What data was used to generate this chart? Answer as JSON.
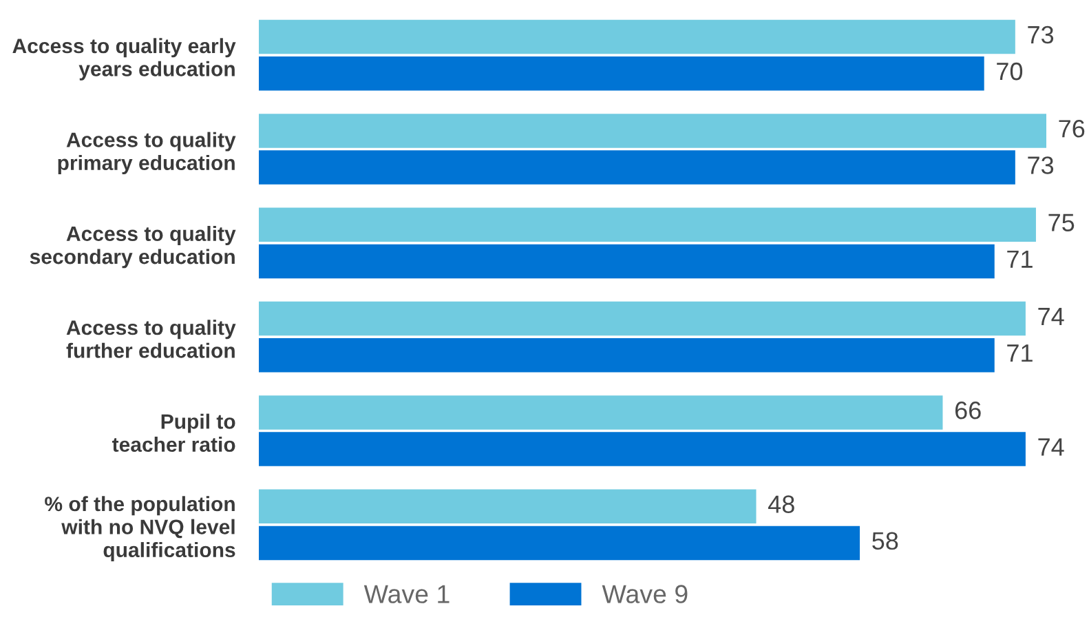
{
  "chart_data": {
    "type": "bar",
    "orientation": "horizontal",
    "categories": [
      "Access to quality early\nyears education",
      "Access to quality\nprimary education",
      "Access to quality\nsecondary education",
      "Access to quality\nfurther education",
      "Pupil to\nteacher ratio",
      "% of the population\nwith no NVQ level\nqualifications"
    ],
    "series": [
      {
        "name": "Wave 1",
        "color": "#70cbe0",
        "values": [
          73,
          76,
          75,
          74,
          66,
          48
        ]
      },
      {
        "name": "Wave 9",
        "color": "#0074d4",
        "values": [
          70,
          73,
          71,
          71,
          74,
          58
        ]
      }
    ],
    "data_labels": true,
    "legend": "bottom",
    "tick_labels": "y"
  }
}
